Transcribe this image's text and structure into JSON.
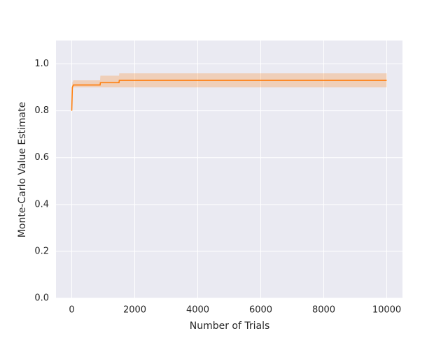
{
  "chart_data": {
    "type": "line",
    "xlabel": "Number of Trials",
    "ylabel": "Monte-Carlo Value Estimate",
    "x": [
      0,
      20,
      50,
      900,
      910,
      1500,
      1510,
      10000
    ],
    "values": [
      0.8,
      0.9,
      0.91,
      0.91,
      0.92,
      0.92,
      0.93,
      0.93
    ],
    "band_lower": [
      0.8,
      0.88,
      0.9,
      0.9,
      0.9,
      0.9,
      0.9,
      0.9
    ],
    "band_upper": [
      0.8,
      0.92,
      0.93,
      0.93,
      0.95,
      0.95,
      0.96,
      0.96
    ],
    "color": "#ff7f0e",
    "band_opacity": 0.25,
    "xlim": [
      -500,
      10500
    ],
    "ylim": [
      0,
      1.1
    ],
    "xticks": [
      0,
      2000,
      4000,
      6000,
      8000,
      10000
    ],
    "yticks": [
      {
        "value": 0,
        "label": "0.0"
      },
      0.2,
      0.4,
      0.6,
      0.8,
      {
        "value": 1,
        "label": "1.0"
      }
    ],
    "grid": true,
    "background": "#eaeaf2"
  }
}
